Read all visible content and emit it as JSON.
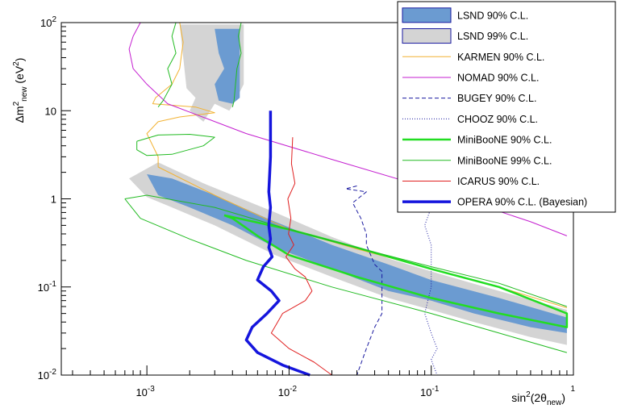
{
  "chart_data": {
    "type": "line",
    "xscale": "log",
    "yscale": "log",
    "xlim": [
      0.00025,
      1
    ],
    "ylim": [
      0.01,
      100
    ],
    "x_tick_labels": [
      {
        "v": 0.001,
        "base": "10",
        "exp": "-3"
      },
      {
        "v": 0.01,
        "base": "10",
        "exp": "-2"
      },
      {
        "v": 0.1,
        "base": "10",
        "exp": "-1"
      },
      {
        "v": 1,
        "base": "",
        "exp": "1"
      }
    ],
    "y_tick_labels": [
      {
        "v": 100,
        "text": "",
        "base": "10",
        "exp": "2"
      },
      {
        "v": 10,
        "text": "10"
      },
      {
        "v": 1,
        "text": "1"
      },
      {
        "v": 0.1,
        "text": "",
        "base": "10",
        "exp": "-1"
      },
      {
        "v": 0.01,
        "text": "",
        "base": "10",
        "exp": "-2"
      }
    ],
    "xlabel": {
      "pre": "sin",
      "sup": "2",
      "mid": "(2θ",
      "sub": "new",
      "post": ")"
    },
    "ylabel": {
      "pre": "Δm",
      "sup": "2",
      "sub": "new",
      "post": " (eV",
      "sup2": "2",
      "end": ")"
    },
    "legend_position": "top-right",
    "legend": [
      {
        "label": "LSND 90% C.L.",
        "kind": "box",
        "fill": "#6b9bd1",
        "stroke": "#1a1aa0"
      },
      {
        "label": "LSND 99% C.L.",
        "kind": "box",
        "fill": "#d4d4d4",
        "stroke": "#1a1aa0"
      },
      {
        "label": "KARMEN 90% C.L.",
        "kind": "line",
        "color": "#f2b233",
        "width": 1,
        "dash": ""
      },
      {
        "label": "NOMAD 90% C.L.",
        "kind": "line",
        "color": "#c41fd0",
        "width": 1,
        "dash": ""
      },
      {
        "label": "BUGEY 90% C.L.",
        "kind": "line",
        "color": "#1a1aa0",
        "width": 1,
        "dash": "5,3"
      },
      {
        "label": "CHOOZ 90% C.L.",
        "kind": "line",
        "color": "#1a1aa0",
        "width": 1,
        "dash": "1,2"
      },
      {
        "label": "MiniBooNE 90% C.L.",
        "kind": "line",
        "color": "#22dd22",
        "width": 2.5,
        "dash": ""
      },
      {
        "label": "MiniBooNE 99% C.L.",
        "kind": "line",
        "color": "#22bb22",
        "width": 1,
        "dash": ""
      },
      {
        "label": "ICARUS 90% C.L.",
        "kind": "line",
        "color": "#e02020",
        "width": 1,
        "dash": ""
      },
      {
        "label": "OPERA 90% C.L. (Bayesian)",
        "kind": "line",
        "color": "#1515dd",
        "width": 3.5,
        "dash": ""
      }
    ],
    "bands": [
      {
        "name": "LSND 99% C.L.",
        "fill": "#d4d4d4",
        "upper": [
          [
            0.00075,
            1.7
          ],
          [
            0.0012,
            2.6
          ],
          [
            0.0025,
            1.5
          ],
          [
            0.008,
            0.7
          ],
          [
            0.02,
            0.37
          ],
          [
            0.05,
            0.21
          ],
          [
            0.1,
            0.15
          ],
          [
            0.3,
            0.09
          ],
          [
            0.9,
            0.055
          ]
        ],
        "lower": [
          [
            0.9,
            0.022
          ],
          [
            0.5,
            0.027
          ],
          [
            0.2,
            0.04
          ],
          [
            0.1,
            0.055
          ],
          [
            0.05,
            0.075
          ],
          [
            0.02,
            0.13
          ],
          [
            0.008,
            0.23
          ],
          [
            0.003,
            0.5
          ],
          [
            0.0015,
            0.8
          ],
          [
            0.001,
            1.05
          ],
          [
            0.00075,
            1.7
          ]
        ]
      },
      {
        "name": "LSND 99% C.L. high",
        "fill": "#d4d4d4",
        "upper": [
          [
            0.0017,
            95
          ],
          [
            0.0048,
            95
          ]
        ],
        "lower": [
          [
            0.0048,
            20
          ],
          [
            0.0042,
            13
          ],
          [
            0.0038,
            10
          ],
          [
            0.003,
            12
          ],
          [
            0.0025,
            7.5
          ],
          [
            0.002,
            10
          ],
          [
            0.0022,
            14
          ],
          [
            0.0019,
            18
          ],
          [
            0.0017,
            95
          ]
        ]
      },
      {
        "name": "LSND 90% C.L.",
        "fill": "#6b9bd1",
        "upper": [
          [
            0.001,
            1.9
          ],
          [
            0.0015,
            1.7
          ],
          [
            0.003,
            1.1
          ],
          [
            0.007,
            0.6
          ],
          [
            0.02,
            0.3
          ],
          [
            0.05,
            0.18
          ],
          [
            0.1,
            0.12
          ],
          [
            0.3,
            0.075
          ],
          [
            0.9,
            0.045
          ]
        ],
        "lower": [
          [
            0.9,
            0.03
          ],
          [
            0.5,
            0.035
          ],
          [
            0.2,
            0.05
          ],
          [
            0.1,
            0.07
          ],
          [
            0.05,
            0.09
          ],
          [
            0.02,
            0.16
          ],
          [
            0.008,
            0.28
          ],
          [
            0.004,
            0.5
          ],
          [
            0.002,
            0.8
          ],
          [
            0.0012,
            1.1
          ],
          [
            0.001,
            1.9
          ]
        ]
      },
      {
        "name": "LSND 90% C.L. high",
        "fill": "#6b9bd1",
        "upper": [
          [
            0.003,
            85
          ],
          [
            0.0045,
            85
          ]
        ],
        "lower": [
          [
            0.0045,
            14
          ],
          [
            0.004,
            12
          ],
          [
            0.0032,
            13
          ],
          [
            0.003,
            20
          ],
          [
            0.0035,
            30
          ],
          [
            0.0032,
            45
          ],
          [
            0.003,
            85
          ]
        ]
      }
    ],
    "series": [
      {
        "name": "KARMEN 90% C.L.",
        "color": "#f2b233",
        "width": 1,
        "dash": "",
        "points": [
          [
            0.0017,
            100
          ],
          [
            0.0018,
            60
          ],
          [
            0.0017,
            30
          ],
          [
            0.0015,
            20
          ],
          [
            0.00115,
            14
          ],
          [
            0.0011,
            12
          ],
          [
            0.0022,
            11
          ],
          [
            0.003,
            9.5
          ],
          [
            0.0017,
            8.5
          ],
          [
            0.0012,
            7.5
          ],
          [
            0.001,
            5.5
          ],
          [
            0.0012,
            3
          ],
          [
            0.0012,
            2.3
          ],
          [
            0.003,
            1.1
          ],
          [
            0.01,
            0.45
          ],
          [
            0.03,
            0.27
          ],
          [
            0.1,
            0.16
          ],
          [
            0.3,
            0.1
          ],
          [
            0.9,
            0.058
          ]
        ]
      },
      {
        "name": "NOMAD 90% C.L.",
        "color": "#c41fd0",
        "width": 1,
        "dash": "",
        "points": [
          [
            0.0009,
            100
          ],
          [
            0.0008,
            70
          ],
          [
            0.00075,
            50
          ],
          [
            0.0008,
            30
          ],
          [
            0.001,
            20
          ],
          [
            0.0014,
            12
          ],
          [
            0.005,
            5.5
          ],
          [
            0.02,
            2.8
          ],
          [
            0.1,
            1.3
          ],
          [
            0.5,
            0.55
          ],
          [
            0.9,
            0.38
          ]
        ]
      },
      {
        "name": "BUGEY 90% C.L.",
        "color": "#1a1aa0",
        "width": 1,
        "dash": "5,3",
        "points": [
          [
            0.03,
            1.4
          ],
          [
            0.025,
            1.3
          ],
          [
            0.035,
            1.2
          ],
          [
            0.028,
            0.9
          ],
          [
            0.032,
            0.6
          ],
          [
            0.035,
            0.4
          ],
          [
            0.035,
            0.3
          ],
          [
            0.04,
            0.18
          ],
          [
            0.045,
            0.15
          ],
          [
            0.045,
            0.05
          ],
          [
            0.04,
            0.035
          ],
          [
            0.035,
            0.02
          ],
          [
            0.03,
            0.01
          ]
        ]
      },
      {
        "name": "CHOOZ 90% C.L.",
        "color": "#1a1aa0",
        "width": 1,
        "dash": "1,2",
        "points": [
          [
            0.1,
            1.3
          ],
          [
            0.1,
            0.8
          ],
          [
            0.09,
            0.5
          ],
          [
            0.1,
            0.3
          ],
          [
            0.1,
            0.1
          ],
          [
            0.09,
            0.05
          ],
          [
            0.1,
            0.03
          ],
          [
            0.11,
            0.02
          ],
          [
            0.1,
            0.015
          ],
          [
            0.11,
            0.01
          ]
        ]
      },
      {
        "name": "MiniBooNE 90% C.L.",
        "color": "#22dd22",
        "width": 2.5,
        "dash": "",
        "points": [
          [
            0.0035,
            0.65
          ],
          [
            0.01,
            0.45
          ],
          [
            0.03,
            0.28
          ],
          [
            0.1,
            0.16
          ],
          [
            0.3,
            0.1
          ],
          [
            0.9,
            0.05
          ],
          [
            0.9,
            0.035
          ],
          [
            0.3,
            0.05
          ],
          [
            0.1,
            0.075
          ],
          [
            0.03,
            0.13
          ],
          [
            0.01,
            0.23
          ],
          [
            0.006,
            0.38
          ],
          [
            0.004,
            0.6
          ],
          [
            0.0035,
            0.65
          ]
        ]
      },
      {
        "name": "MiniBooNE 99% C.L.",
        "color": "#22bb22",
        "width": 1,
        "dash": "",
        "points": [
          [
            0.0007,
            1.0
          ],
          [
            0.0009,
            0.6
          ],
          [
            0.002,
            0.35
          ],
          [
            0.005,
            0.2
          ],
          [
            0.02,
            0.1
          ],
          [
            0.1,
            0.05
          ],
          [
            0.3,
            0.03
          ],
          [
            0.9,
            0.018
          ]
        ]
      },
      {
        "name": "MiniBooNE 99% C.L. upper",
        "color": "#22bb22",
        "width": 1,
        "dash": "",
        "points": [
          [
            0.0007,
            1.0
          ],
          [
            0.001,
            1.1
          ],
          [
            0.003,
            0.8
          ],
          [
            0.01,
            0.45
          ],
          [
            0.03,
            0.28
          ],
          [
            0.1,
            0.17
          ],
          [
            0.3,
            0.11
          ],
          [
            0.9,
            0.06
          ]
        ]
      },
      {
        "name": "MiniBooNE 99% C.L. island",
        "color": "#22bb22",
        "width": 1,
        "dash": "",
        "points": [
          [
            0.00085,
            4.5
          ],
          [
            0.0012,
            5.3
          ],
          [
            0.002,
            5.4
          ],
          [
            0.003,
            5.0
          ],
          [
            0.0025,
            4.0
          ],
          [
            0.0015,
            3.2
          ],
          [
            0.001,
            3.1
          ],
          [
            0.00085,
            3.6
          ],
          [
            0.00085,
            4.5
          ]
        ]
      },
      {
        "name": "MiniBooNE 99% C.L. left",
        "color": "#22bb22",
        "width": 1,
        "dash": "",
        "points": [
          [
            0.0016,
            100
          ],
          [
            0.0015,
            70
          ],
          [
            0.0016,
            45
          ],
          [
            0.0014,
            30
          ],
          [
            0.0015,
            20
          ],
          [
            0.0013,
            13
          ],
          [
            0.0012,
            11
          ]
        ]
      },
      {
        "name": "MiniBooNE 99% C.L. right",
        "color": "#22bb22",
        "width": 1,
        "dash": "",
        "points": [
          [
            0.0046,
            100
          ],
          [
            0.0044,
            70
          ],
          [
            0.0046,
            45
          ],
          [
            0.0043,
            30
          ],
          [
            0.0042,
            20
          ],
          [
            0.0041,
            13
          ],
          [
            0.004,
            11
          ]
        ]
      },
      {
        "name": "ICARUS 90% C.L.",
        "color": "#e02020",
        "width": 1,
        "dash": "",
        "points": [
          [
            0.0106,
            5
          ],
          [
            0.0104,
            2.5
          ],
          [
            0.011,
            1.5
          ],
          [
            0.0098,
            1.0
          ],
          [
            0.0103,
            0.6
          ],
          [
            0.0099,
            0.4
          ],
          [
            0.0108,
            0.3
          ],
          [
            0.0095,
            0.22
          ],
          [
            0.011,
            0.16
          ],
          [
            0.013,
            0.13
          ],
          [
            0.0145,
            0.09
          ],
          [
            0.013,
            0.07
          ],
          [
            0.009,
            0.05
          ],
          [
            0.0075,
            0.03
          ],
          [
            0.01,
            0.02
          ],
          [
            0.015,
            0.014
          ],
          [
            0.02,
            0.01
          ]
        ]
      },
      {
        "name": "OPERA 90% C.L. (Bayesian)",
        "color": "#1515dd",
        "width": 3.5,
        "dash": "",
        "points": [
          [
            0.0074,
            10
          ],
          [
            0.0074,
            3
          ],
          [
            0.0072,
            1.2
          ],
          [
            0.0074,
            0.8
          ],
          [
            0.0072,
            0.5
          ],
          [
            0.0074,
            0.35
          ],
          [
            0.0072,
            0.28
          ],
          [
            0.0076,
            0.22
          ],
          [
            0.0066,
            0.17
          ],
          [
            0.006,
            0.12
          ],
          [
            0.0075,
            0.09
          ],
          [
            0.0085,
            0.07
          ],
          [
            0.007,
            0.05
          ],
          [
            0.0055,
            0.035
          ],
          [
            0.005,
            0.025
          ],
          [
            0.006,
            0.018
          ],
          [
            0.009,
            0.013
          ],
          [
            0.014,
            0.01
          ]
        ]
      }
    ]
  }
}
